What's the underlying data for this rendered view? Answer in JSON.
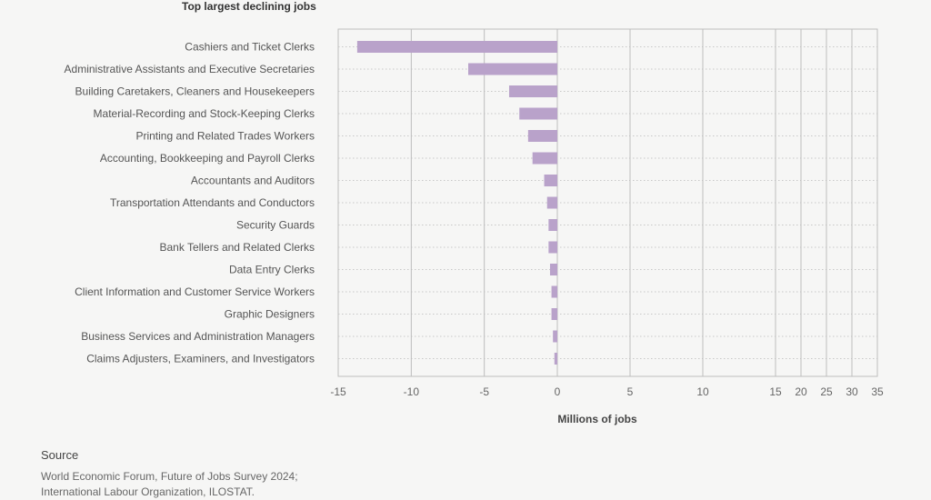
{
  "chart_data": {
    "type": "bar",
    "orientation": "horizontal",
    "title": "Top largest declining jobs",
    "xlabel": "Millions of jobs",
    "ylabel": "",
    "categories": [
      "Cashiers and Ticket Clerks",
      "Administrative Assistants and Executive Secretaries",
      "Building Caretakers, Cleaners and Housekeepers",
      "Material-Recording and Stock-Keeping Clerks",
      "Printing and Related Trades Workers",
      "Accounting, Bookkeeping and Payroll Clerks",
      "Accountants and Auditors",
      "Transportation Attendants and Conductors",
      "Security Guards",
      "Bank Tellers and Related Clerks",
      "Data Entry Clerks",
      "Client Information and Customer Service Workers",
      "Graphic Designers",
      "Business Services and Administration Managers",
      "Claims Adjusters, Examiners, and Investigators"
    ],
    "values": [
      -13.7,
      -6.1,
      -3.3,
      -2.6,
      -2.0,
      -1.7,
      -0.9,
      -0.7,
      -0.6,
      -0.6,
      -0.5,
      -0.4,
      -0.4,
      -0.3,
      -0.2
    ],
    "xticks": [
      -15,
      -10,
      -5,
      0,
      5,
      10,
      15,
      20,
      25,
      30,
      35
    ],
    "xlim": [
      -15,
      35
    ],
    "bar_color": "#b9a2ca",
    "grid": true
  },
  "source": {
    "heading": "Source",
    "lines": [
      "World Economic Forum, Future of Jobs Survey 2024;",
      "International Labour Organization, ILOSTAT."
    ]
  }
}
